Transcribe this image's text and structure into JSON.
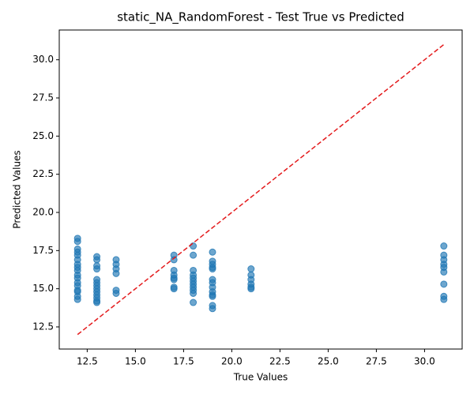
{
  "chart_data": {
    "type": "scatter",
    "title": "static_NA_RandomForest - Test True vs Predicted",
    "xlabel": "True Values",
    "ylabel": "Predicted Values",
    "color": "#1f77b4",
    "x": [
      12,
      12,
      12,
      12,
      12,
      12,
      12,
      12,
      12,
      12,
      12,
      12,
      12,
      12,
      12,
      12,
      12,
      13,
      13,
      13,
      13,
      13,
      13,
      13,
      13,
      13,
      13,
      13,
      13,
      13,
      14,
      14,
      14,
      14,
      14,
      14,
      17,
      17,
      17,
      17,
      17,
      17,
      17,
      17,
      18,
      18,
      18,
      18,
      18,
      18,
      18,
      18,
      18,
      18,
      18,
      19,
      19,
      19,
      19,
      19,
      19,
      19,
      19,
      19,
      19,
      19,
      19,
      19,
      21,
      21,
      21,
      21,
      21,
      21,
      31,
      31,
      31,
      31,
      31,
      31,
      31,
      31,
      31
    ],
    "values": [
      18.3,
      18.1,
      17.6,
      17.4,
      17.2,
      16.9,
      16.6,
      16.4,
      16.2,
      15.9,
      15.7,
      15.4,
      15.2,
      14.9,
      14.8,
      14.5,
      14.3,
      17.1,
      16.9,
      16.5,
      16.3,
      15.6,
      15.4,
      15.2,
      15.0,
      14.8,
      14.6,
      14.4,
      14.2,
      14.1,
      16.9,
      16.6,
      16.3,
      16.0,
      14.9,
      14.7,
      17.2,
      16.9,
      16.2,
      15.9,
      15.7,
      15.6,
      15.1,
      15.0,
      17.8,
      17.2,
      16.2,
      15.9,
      15.7,
      15.5,
      15.3,
      15.1,
      14.9,
      14.7,
      14.1,
      17.4,
      16.8,
      16.6,
      16.4,
      16.3,
      15.6,
      15.4,
      15.1,
      14.8,
      14.6,
      14.5,
      13.9,
      13.7,
      16.3,
      15.9,
      15.6,
      15.3,
      15.1,
      15.0,
      17.8,
      17.2,
      16.9,
      16.6,
      16.4,
      16.1,
      15.3,
      14.5,
      14.3
    ],
    "reference_line": {
      "x": [
        12,
        31
      ],
      "values": [
        12,
        31
      ],
      "color": "#e41a1c"
    },
    "xlim": [
      11.05,
      31.95
    ],
    "ylim": [
      11.05,
      31.95
    ],
    "xticks": [
      12.5,
      {
        "value": 15,
        "label": "15.0"
      },
      17.5,
      {
        "value": 20,
        "label": "20.0"
      },
      22.5,
      {
        "value": 25,
        "label": "25.0"
      },
      27.5,
      {
        "value": 30,
        "label": "30.0"
      }
    ],
    "yticks": [
      12.5,
      {
        "value": 15,
        "label": "15.0"
      },
      17.5,
      {
        "value": 20,
        "label": "20.0"
      },
      22.5,
      {
        "value": 25,
        "label": "25.0"
      },
      27.5,
      {
        "value": 30,
        "label": "30.0"
      }
    ]
  }
}
